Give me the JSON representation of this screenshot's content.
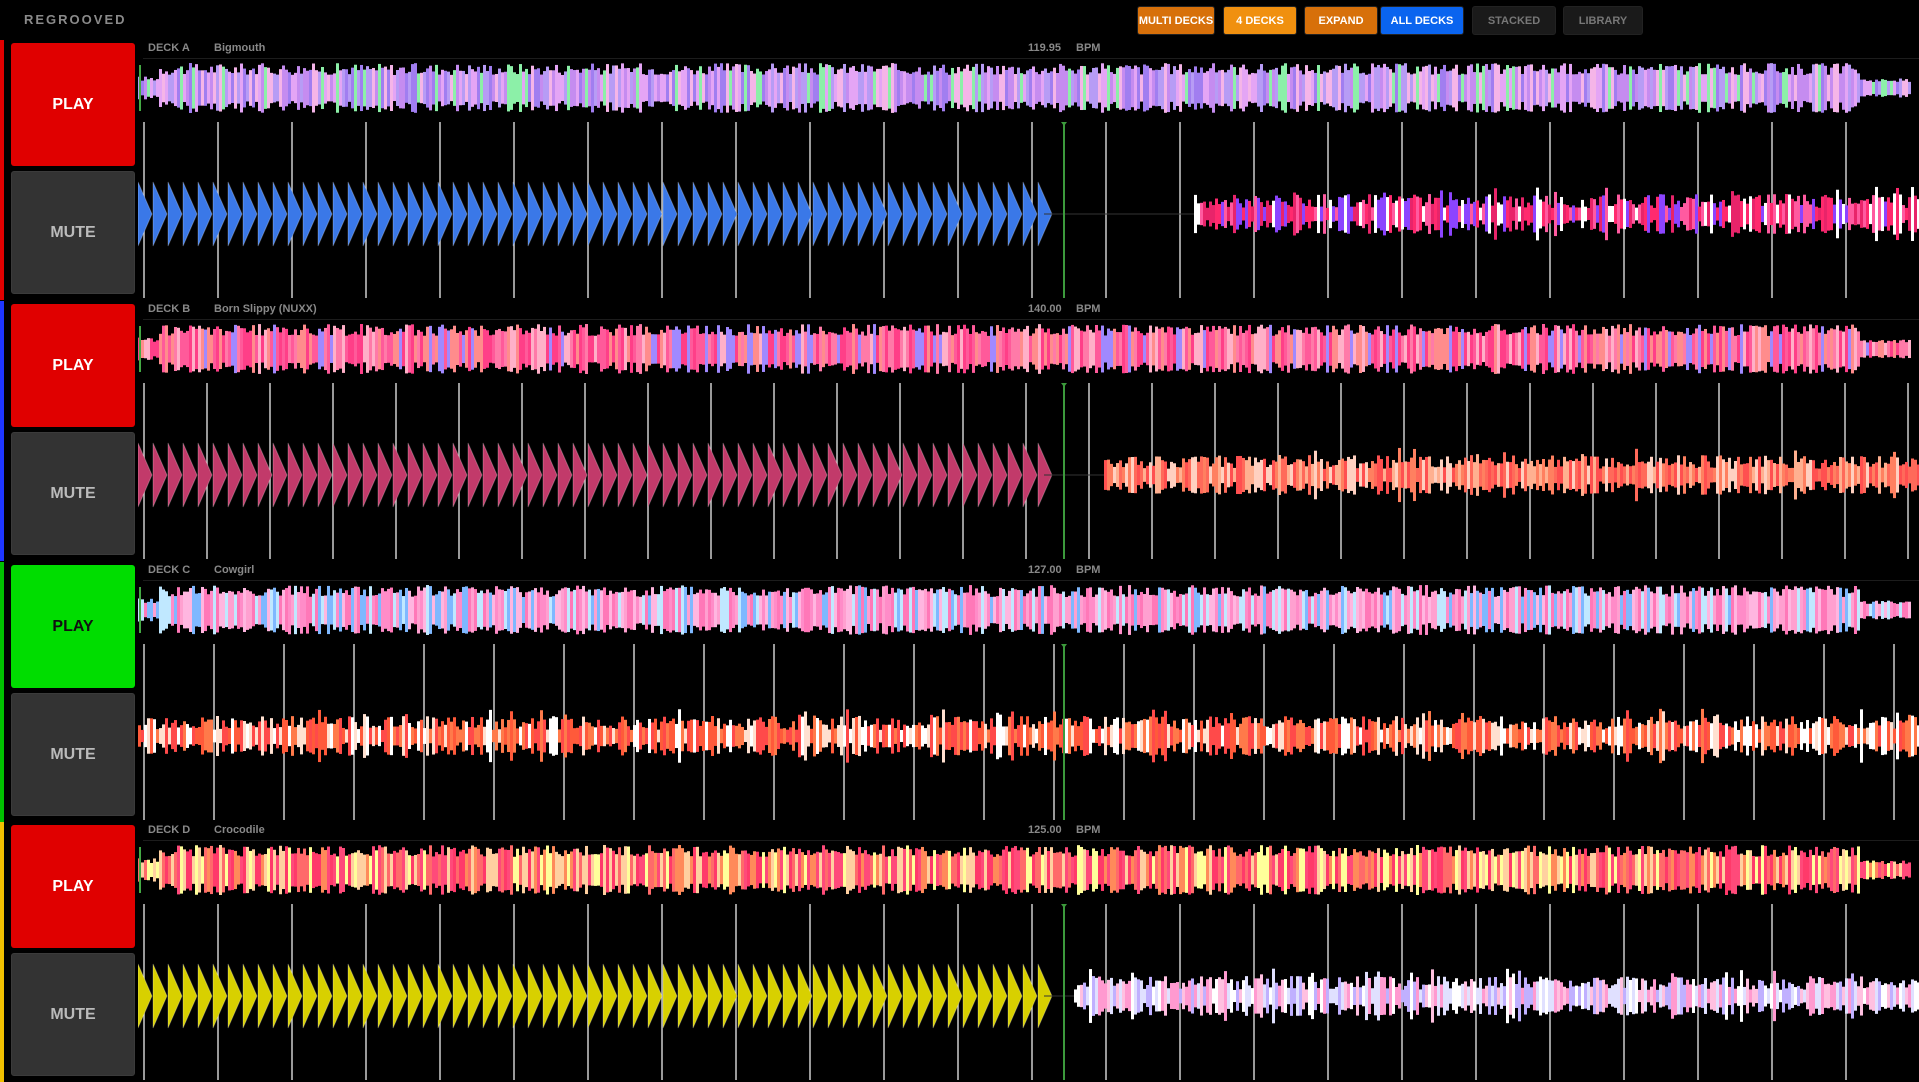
{
  "app": {
    "title": "REGROOVED"
  },
  "toolbar": [
    {
      "id": "multi-decks",
      "label": "MULTI DECKS",
      "bg": "#d7700a"
    },
    {
      "id": "4-decks",
      "label": "4 DECKS",
      "bg": "#f0900f"
    },
    {
      "id": "expand",
      "label": "EXPAND",
      "bg": "#d7700a"
    },
    {
      "id": "all-decks",
      "label": "ALL DECKS",
      "bg": "#0a64ef"
    },
    {
      "id": "stacked",
      "label": "STACKED",
      "bg": "#1a1a1a"
    },
    {
      "id": "library",
      "label": "LIBRARY",
      "bg": "#1a1a1a"
    }
  ],
  "decks": [
    {
      "label": "DECK A",
      "track": "Bigmouth",
      "bpm": "119.95",
      "bpm_unit": "BPM",
      "play_label": "PLAY",
      "mute_label": "MUTE",
      "playing": false,
      "play_color": "#e00000",
      "accent_color": "#e00000",
      "overview_palette": [
        "#c58cf0",
        "#e4a5f5",
        "#a17ef0",
        "#8cf0a8",
        "#f5b5e8",
        "#b79cf5"
      ],
      "detail_palette": [
        "#ff2a6e",
        "#e8246a",
        "#8c44ff",
        "#ff5aa0",
        "#ffffff"
      ],
      "loop_color": "#3a78e8",
      "loop_fraction": 0.41,
      "playhead": 0.52
    },
    {
      "label": "DECK B",
      "track": "Born Slippy (NUXX)",
      "bpm": "140.00",
      "bpm_unit": "BPM",
      "play_label": "PLAY",
      "mute_label": "MUTE",
      "playing": false,
      "play_color": "#e00000",
      "accent_color": "#1e36ff",
      "overview_palette": [
        "#ff8c8c",
        "#ff5a9a",
        "#ff3f88",
        "#ffb0c8",
        "#a089ff",
        "#ff7aa8"
      ],
      "detail_palette": [
        "#ff6a5a",
        "#ff8060",
        "#ff5050",
        "#ffb090",
        "#ffd0c0"
      ],
      "loop_color": "#c23a6a",
      "loop_fraction": 0.42,
      "playhead": 0.52
    },
    {
      "label": "DECK C",
      "track": "Cowgirl",
      "bpm": "127.00",
      "bpm_unit": "BPM",
      "play_label": "PLAY",
      "mute_label": "MUTE",
      "playing": true,
      "play_color": "#00dd00",
      "accent_color": "#00c000",
      "overview_palette": [
        "#ffa0d0",
        "#ff8cc8",
        "#ffb6e0",
        "#7fb8ff",
        "#c0e8ff",
        "#ff78b8"
      ],
      "detail_palette": [
        "#ff5a3a",
        "#ff7a4a",
        "#ff4a4a",
        "#ffe0d0",
        "#ffffff"
      ],
      "loop_color": "#000000",
      "loop_fraction": 0,
      "playhead": 0.52
    },
    {
      "label": "DECK D",
      "track": "Crocodile",
      "bpm": "125.00",
      "bpm_unit": "BPM",
      "play_label": "PLAY",
      "mute_label": "MUTE",
      "playing": false,
      "play_color": "#e00000",
      "accent_color": "#f0c000",
      "overview_palette": [
        "#ff4a7a",
        "#ff6a6a",
        "#ff3a6a",
        "#ffd0a0",
        "#ffff9a",
        "#ff8a5a"
      ],
      "detail_palette": [
        "#ff9ad0",
        "#c0b0ff",
        "#ffc0e0",
        "#e0e0ff",
        "#ffffff"
      ],
      "loop_color": "#d8d000",
      "loop_fraction": 0.5,
      "playhead": 0.52
    }
  ]
}
